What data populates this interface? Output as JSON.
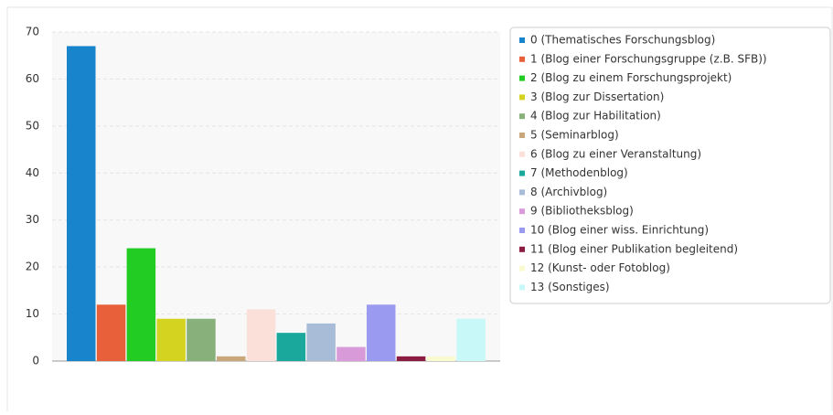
{
  "chart_data": {
    "type": "bar",
    "categories": [
      "0 (Thematisches Forschungsblog)",
      "1 (Blog einer Forschungsgruppe (z.B. SFB))",
      "2 (Blog zu einem Forschungsprojekt)",
      "3 (Blog zur Dissertation)",
      "4 (Blog zur Habilitation)",
      "5 (Seminarblog)",
      "6 (Blog zu einer Veranstaltung)",
      "7 (Methodenblog)",
      "8 (Archivblog)",
      "9 (Bibliotheksblog)",
      "10 (Blog einer wiss. Einrichtung)",
      "11 (Blog einer Publikation begleitend)",
      "12 (Kunst- oder Fotoblog)",
      "13 (Sonstiges)"
    ],
    "values": [
      67,
      12,
      24,
      9,
      9,
      1,
      11,
      6,
      8,
      3,
      12,
      1,
      1,
      9
    ],
    "colors": [
      "#1884cc",
      "#e8603a",
      "#22cc22",
      "#d4d420",
      "#88b07a",
      "#c8a87a",
      "#fae0d8",
      "#1aa89c",
      "#a8bcd8",
      "#d89ad8",
      "#9a9af0",
      "#8c1c40",
      "#fafad0",
      "#c8f8f8"
    ],
    "ylim": [
      0,
      70
    ],
    "yticks": [
      0,
      10,
      20,
      30,
      40,
      50,
      60,
      70
    ],
    "grid": true,
    "legend": "right"
  }
}
